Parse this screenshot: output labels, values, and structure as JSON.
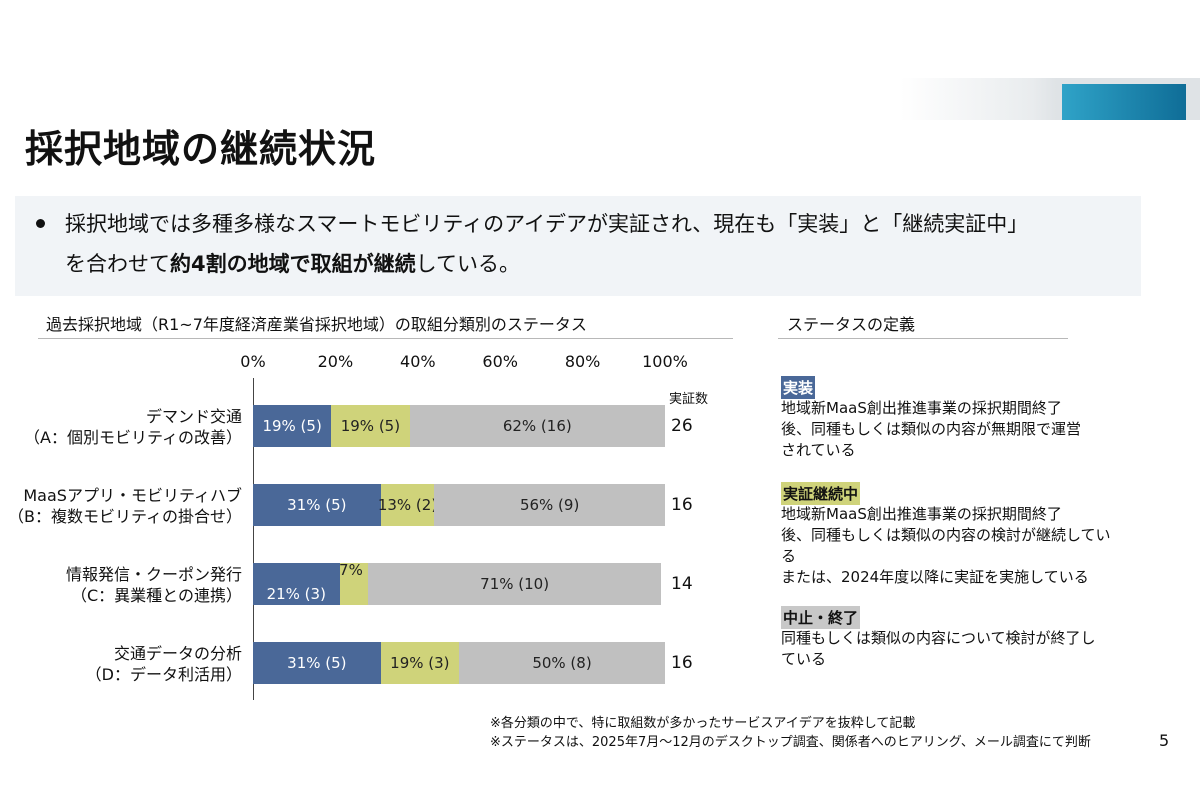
{
  "title": "採択地域の継続状況",
  "bullet": {
    "line1": "採択地域では多種多様なスマートモビリティのアイデアが実証され、現在も「実装」と「継続実証中」",
    "line2_pre": "を合わせて",
    "line2_bold": "約4割の地域で取組が継続",
    "line2_post": "している。"
  },
  "chart_data": {
    "type": "bar",
    "orientation": "horizontal",
    "stacked": true,
    "title": "過去採択地域（R1~7年度経済産業省採択地域）の取組分類別のステータス",
    "x_ticks": [
      "0%",
      "20%",
      "40%",
      "60%",
      "80%",
      "100%"
    ],
    "xlim": [
      0,
      100
    ],
    "count_header": "実証数",
    "categories": [
      {
        "line1": "デマンド交通",
        "line2": "（A：個別モビリティの改善）"
      },
      {
        "line1": "MaaSアプリ・モビリティハブ",
        "line2": "（B：複数モビリティの掛合せ）"
      },
      {
        "line1": "情報発信・クーポン発行",
        "line2": "（C：異業種との連携）"
      },
      {
        "line1": "交通データの分析",
        "line2": "（D：データ利活用）"
      }
    ],
    "series": [
      {
        "status": "実装",
        "color": "#4a6898",
        "text_color": "#ffffff",
        "values": [
          19,
          31,
          21,
          31
        ],
        "labels": [
          "19% (5)",
          "31% (5)",
          "21% (3)",
          "31% (5)"
        ]
      },
      {
        "status": "実証継続中",
        "color": "#cfd37a",
        "text_color": "#222222",
        "values": [
          19,
          13,
          7,
          19
        ],
        "labels": [
          "19% (5)",
          "13% (2)",
          "7% (1)",
          "19% (3)"
        ]
      },
      {
        "status": "中止・終了",
        "color": "#c0c0c0",
        "text_color": "#222222",
        "values": [
          62,
          56,
          71,
          50
        ],
        "labels": [
          "62% (16)",
          "56% (9)",
          "71% (10)",
          "50% (8)"
        ]
      }
    ],
    "counts": [
      "26",
      "16",
      "14",
      "16"
    ]
  },
  "definitions": {
    "title": "ステータスの定義",
    "items": [
      {
        "label": "実装",
        "label_bg": "#4a6898",
        "label_color": "#ffffff",
        "lines": [
          "地域新MaaS創出推進事業の採択期間終了",
          "後、同種もしくは類似の内容が無期限で運営",
          "されている"
        ]
      },
      {
        "label": "実証継続中",
        "label_bg": "#cfd37a",
        "label_color": "#111111",
        "lines": [
          "地域新MaaS創出推進事業の採択期間終了",
          "後、同種もしくは類似の内容の検討が継続してい",
          "る",
          "または、2024年度以降に実証を実施している"
        ]
      },
      {
        "label": "中止・終了",
        "label_bg": "#c8c8c8",
        "label_color": "#111111",
        "lines": [
          "同種もしくは類似の内容について検討が終了し",
          "ている"
        ]
      }
    ]
  },
  "footnotes": [
    "※各分類の中で、特に取組数が多かったサービスアイデアを抜粋して記載",
    "※ステータスは、2025年7月～12月のデスクトップ調査、関係者へのヒアリング、メール調査にて判断"
  ],
  "page_number": "5"
}
